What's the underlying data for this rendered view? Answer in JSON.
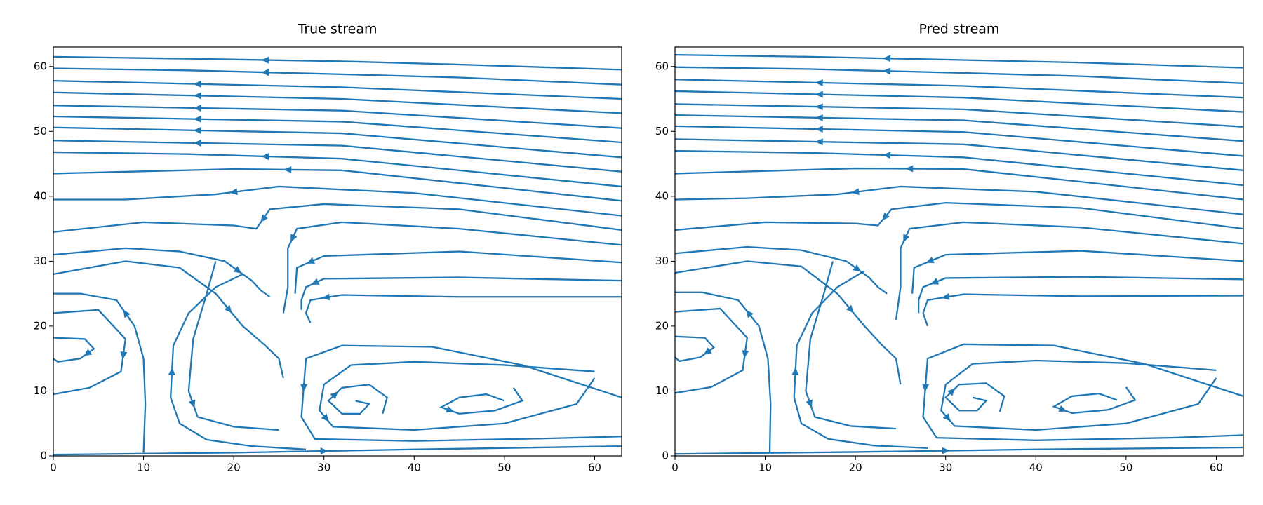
{
  "chart_data": [
    {
      "type": "streamplot",
      "title": "True stream",
      "color": "#1f77b4",
      "xlim": [
        0,
        63
      ],
      "ylim": [
        0,
        63
      ],
      "xticks": [
        0,
        10,
        20,
        30,
        40,
        50,
        60
      ],
      "yticks": [
        0,
        10,
        20,
        30,
        40,
        50,
        60
      ],
      "lines": [
        {
          "x": [
            63,
            45,
            32,
            15,
            0
          ],
          "y": [
            59.5,
            60.3,
            60.8,
            61.2,
            61.5
          ]
        },
        {
          "x": [
            63,
            45,
            32,
            15,
            0
          ],
          "y": [
            57.2,
            58.3,
            58.8,
            59.4,
            59.7
          ]
        },
        {
          "x": [
            63,
            32,
            0
          ],
          "y": [
            55,
            56.8,
            57.8
          ]
        },
        {
          "x": [
            63,
            32,
            0
          ],
          "y": [
            52.8,
            55,
            56
          ]
        },
        {
          "x": [
            63,
            32,
            0
          ],
          "y": [
            50.5,
            53.2,
            54
          ]
        },
        {
          "x": [
            63,
            32,
            0
          ],
          "y": [
            48.3,
            51.5,
            52.3
          ]
        },
        {
          "x": [
            63,
            32,
            0
          ],
          "y": [
            46,
            49.7,
            50.6
          ]
        },
        {
          "x": [
            63,
            32,
            0
          ],
          "y": [
            43.8,
            47.8,
            48.6
          ]
        },
        {
          "x": [
            63,
            32,
            15,
            0
          ],
          "y": [
            41.5,
            45.8,
            46.5,
            46.8
          ]
        },
        {
          "x": [
            63,
            32,
            20,
            0
          ],
          "y": [
            39.3,
            44,
            44.2,
            43.5
          ]
        },
        {
          "x": [
            63,
            40,
            25,
            22,
            18,
            8,
            0
          ],
          "y": [
            37,
            40.5,
            41.5,
            41,
            40.3,
            39.5,
            39.5
          ]
        },
        {
          "x": [
            63,
            45,
            30,
            24,
            22.5,
            20,
            10,
            0
          ],
          "y": [
            34.8,
            38,
            38.8,
            38,
            35,
            35.5,
            36,
            34.5
          ]
        },
        {
          "x": [
            63,
            45,
            32,
            27,
            26,
            26,
            25.5
          ],
          "y": [
            32.5,
            35,
            36,
            35,
            32,
            26,
            22
          ]
        },
        {
          "x": [
            63,
            45,
            30,
            27,
            26.8
          ],
          "y": [
            29.8,
            31.5,
            30.8,
            29,
            25
          ]
        },
        {
          "x": [
            63,
            45,
            30,
            28,
            27.5,
            27.5
          ],
          "y": [
            27,
            27.5,
            27.3,
            26,
            24,
            22.5
          ]
        },
        {
          "x": [
            63,
            45,
            32,
            28.5,
            28,
            28.5
          ],
          "y": [
            24.5,
            24.5,
            24.8,
            24,
            22,
            20.5
          ]
        },
        {
          "x": [
            63,
            52,
            42,
            32,
            28,
            27.5,
            29,
            40,
            55,
            63
          ],
          "y": [
            9,
            14,
            16.8,
            17,
            15,
            6,
            2.6,
            2.3,
            2.7,
            3
          ]
        },
        {
          "x": [
            60,
            50,
            40,
            33,
            30,
            29.5,
            31,
            40,
            50,
            58,
            60
          ],
          "y": [
            13,
            14,
            14.5,
            14,
            11,
            7,
            4.5,
            4,
            5,
            8,
            12
          ]
        },
        {
          "x": [
            33.5,
            35,
            34,
            32,
            30.5,
            32,
            35,
            37,
            36.5
          ],
          "y": [
            8.5,
            8,
            6.5,
            6.5,
            8.5,
            10.5,
            11,
            9,
            6.5
          ]
        },
        {
          "x": [
            50,
            48,
            45,
            43,
            45,
            49,
            52,
            51
          ],
          "y": [
            8.5,
            9.5,
            9,
            7.5,
            6.5,
            7,
            8.5,
            10.5
          ]
        },
        {
          "x": [
            0,
            20,
            40,
            63
          ],
          "y": [
            0.2,
            0.5,
            1,
            1.5
          ]
        },
        {
          "x": [
            0,
            3.5,
            4.5,
            3,
            0.5,
            0
          ],
          "y": [
            18.2,
            18,
            16.5,
            15,
            14.5,
            15
          ]
        },
        {
          "x": [
            0,
            5,
            8,
            7.5,
            4,
            0
          ],
          "y": [
            22,
            22.5,
            18,
            13,
            10.5,
            9.5
          ]
        },
        {
          "x": [
            10,
            10.2,
            10,
            9,
            7,
            3,
            0
          ],
          "y": [
            0.5,
            8,
            15,
            20,
            24,
            25,
            25
          ]
        },
        {
          "x": [
            0,
            8,
            14,
            18,
            21,
            23.5,
            25,
            25.5
          ],
          "y": [
            28,
            30,
            29,
            25,
            20,
            17,
            15,
            12
          ]
        },
        {
          "x": [
            0,
            8,
            14,
            19,
            22,
            23,
            24
          ],
          "y": [
            31,
            32,
            31.5,
            30,
            27,
            25.5,
            24.5
          ]
        },
        {
          "x": [
            28,
            22,
            17,
            14,
            13,
            13.3,
            15,
            18,
            21
          ],
          "y": [
            1,
            1.5,
            2.5,
            5,
            9,
            17,
            22,
            26,
            28
          ]
        },
        {
          "x": [
            18,
            17,
            15.5,
            15,
            16,
            20,
            25
          ],
          "y": [
            30,
            25,
            18,
            10,
            6,
            4.5,
            4
          ]
        }
      ]
    },
    {
      "type": "streamplot",
      "title": "Pred stream",
      "color": "#1f77b4",
      "xlim": [
        0,
        63
      ],
      "ylim": [
        0,
        63
      ],
      "xticks": [
        0,
        10,
        20,
        30,
        40,
        50,
        60
      ],
      "yticks": [
        0,
        10,
        20,
        30,
        40,
        50,
        60
      ],
      "lines": [
        {
          "x": [
            63,
            45,
            32,
            15,
            0
          ],
          "y": [
            59.8,
            60.6,
            61,
            61.5,
            61.8
          ]
        },
        {
          "x": [
            63,
            45,
            32,
            15,
            0
          ],
          "y": [
            57.4,
            58.5,
            59,
            59.6,
            59.9
          ]
        },
        {
          "x": [
            63,
            32,
            0
          ],
          "y": [
            55.2,
            57,
            58
          ]
        },
        {
          "x": [
            63,
            32,
            0
          ],
          "y": [
            53,
            55.2,
            56.2
          ]
        },
        {
          "x": [
            63,
            32,
            0
          ],
          "y": [
            50.7,
            53.4,
            54.2
          ]
        },
        {
          "x": [
            63,
            32,
            0
          ],
          "y": [
            48.5,
            51.7,
            52.5
          ]
        },
        {
          "x": [
            63,
            32,
            0
          ],
          "y": [
            46.2,
            49.9,
            50.8
          ]
        },
        {
          "x": [
            63,
            32,
            0
          ],
          "y": [
            44,
            48,
            48.8
          ]
        },
        {
          "x": [
            63,
            32,
            15,
            0
          ],
          "y": [
            41.7,
            46,
            46.7,
            47
          ]
        },
        {
          "x": [
            63,
            32,
            20,
            0
          ],
          "y": [
            39.5,
            44.2,
            44.3,
            43.5
          ]
        },
        {
          "x": [
            63,
            40,
            25,
            22,
            18,
            8,
            0
          ],
          "y": [
            37.2,
            40.7,
            41.5,
            41,
            40.3,
            39.7,
            39.5
          ]
        },
        {
          "x": [
            63,
            45,
            30,
            24,
            22.5,
            20,
            10,
            0
          ],
          "y": [
            35,
            38.2,
            39,
            38,
            35.5,
            35.8,
            36,
            34.8
          ]
        },
        {
          "x": [
            63,
            45,
            32,
            26,
            25,
            25,
            24.5
          ],
          "y": [
            32.7,
            35.2,
            36,
            35,
            32,
            26,
            21
          ]
        },
        {
          "x": [
            63,
            45,
            30,
            26.5,
            26.3
          ],
          "y": [
            30,
            31.6,
            31,
            29,
            25
          ]
        },
        {
          "x": [
            63,
            45,
            30,
            27.5,
            27,
            27
          ],
          "y": [
            27.2,
            27.6,
            27.4,
            26,
            24,
            22
          ]
        },
        {
          "x": [
            63,
            45,
            32,
            28,
            27.5,
            28
          ],
          "y": [
            24.7,
            24.6,
            24.9,
            24,
            22,
            20
          ]
        },
        {
          "x": [
            63,
            52,
            42,
            32,
            28,
            27.5,
            29,
            40,
            55,
            63
          ],
          "y": [
            9.2,
            14.2,
            17,
            17.2,
            15,
            6,
            2.8,
            2.4,
            2.8,
            3.2
          ]
        },
        {
          "x": [
            60,
            50,
            40,
            33,
            30,
            29.5,
            31,
            40,
            50,
            58,
            60
          ],
          "y": [
            13.2,
            14.3,
            14.7,
            14.2,
            11,
            7,
            4.6,
            4,
            5,
            8,
            12
          ]
        },
        {
          "x": [
            33,
            34.5,
            33.5,
            31.5,
            30,
            31.5,
            34.5,
            36.5,
            36
          ],
          "y": [
            9,
            8.5,
            7,
            7,
            9,
            11,
            11.2,
            9.2,
            6.8
          ]
        },
        {
          "x": [
            49,
            47,
            44,
            42,
            44,
            48,
            51,
            50
          ],
          "y": [
            8.6,
            9.6,
            9.2,
            7.6,
            6.6,
            7.1,
            8.6,
            10.6
          ]
        },
        {
          "x": [
            0,
            20,
            40,
            63
          ],
          "y": [
            0.3,
            0.6,
            1,
            1.3
          ]
        },
        {
          "x": [
            0,
            3.3,
            4.3,
            2.8,
            0.5,
            0
          ],
          "y": [
            18.4,
            18.2,
            16.7,
            15.2,
            14.6,
            15.2
          ]
        },
        {
          "x": [
            0,
            5,
            8,
            7.5,
            4,
            0
          ],
          "y": [
            22.2,
            22.7,
            18.2,
            13.2,
            10.6,
            9.7
          ]
        },
        {
          "x": [
            10.5,
            10.6,
            10.3,
            9.3,
            7,
            3,
            0
          ],
          "y": [
            0.5,
            8,
            15,
            20,
            24,
            25.2,
            25.2
          ]
        },
        {
          "x": [
            0,
            8,
            14,
            18,
            21,
            23,
            24.5,
            25
          ],
          "y": [
            28.2,
            30,
            29.2,
            25,
            20,
            17,
            15,
            11
          ]
        },
        {
          "x": [
            0,
            8,
            14,
            19,
            21.5,
            22.5,
            23.5
          ],
          "y": [
            31.2,
            32.2,
            31.7,
            30,
            27.5,
            26,
            25
          ]
        },
        {
          "x": [
            28,
            22,
            17,
            14,
            13.2,
            13.5,
            15.2,
            18,
            21
          ],
          "y": [
            1.2,
            1.6,
            2.6,
            5,
            9,
            17,
            22,
            26,
            28.5
          ]
        },
        {
          "x": [
            17.5,
            16.5,
            15,
            14.5,
            15.5,
            19.5,
            24.5
          ],
          "y": [
            30,
            25,
            18,
            10,
            6,
            4.6,
            4.2
          ]
        }
      ]
    }
  ]
}
